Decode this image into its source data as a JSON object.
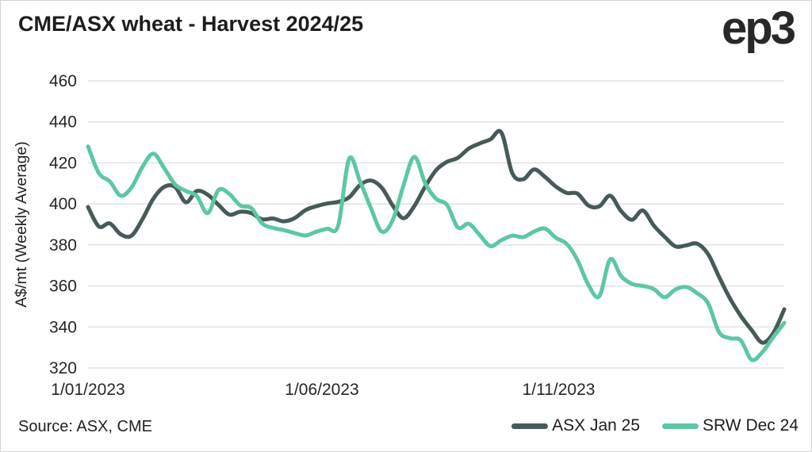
{
  "page": {
    "title": "CME/ASX wheat - Harvest 2024/25",
    "logo": "ep3",
    "source": "Source: ASX, CME"
  },
  "chart_data": {
    "type": "line",
    "title": "CME/ASX wheat - Harvest 2024/25",
    "xlabel": "",
    "ylabel": "A$/mt (Weekly Average)",
    "ylim": [
      320,
      460
    ],
    "yticks": [
      320,
      340,
      360,
      380,
      400,
      420,
      440,
      460
    ],
    "grid": "horizontal-only",
    "legend_position": "bottom-right",
    "x_unit": "weekly",
    "xticks": [
      {
        "label": "1/01/2023",
        "frac": 0.0
      },
      {
        "label": "1/06/2023",
        "frac": 0.336
      },
      {
        "label": "1/11/2023",
        "frac": 0.676
      }
    ],
    "series": [
      {
        "name": "ASX Jan 25",
        "color": "#465a59",
        "values": [
          398.5,
          389,
          390.5,
          385.2,
          384.5,
          392.5,
          402.5,
          408.3,
          408.3,
          400.8,
          406.3,
          404.5,
          399.5,
          394.8,
          396.2,
          395.5,
          392.5,
          392.9,
          391.5,
          393.1,
          397,
          398.9,
          400.2,
          401,
          403.2,
          409.2,
          411.4,
          407.9,
          399.3,
          393,
          399,
          408.5,
          416.5,
          420.5,
          422.5,
          427,
          429.5,
          431.5,
          434.8,
          415,
          412,
          416.8,
          413.2,
          408.5,
          405.4,
          405,
          399.2,
          398.8,
          404,
          396.5,
          392.3,
          396.8,
          389.5,
          384,
          379.3,
          379.8,
          380.6,
          375.5,
          364.5,
          354,
          345.4,
          338.5,
          332.3,
          337.1,
          348.6
        ]
      },
      {
        "name": "SRW Dec 24",
        "color": "#5cc8a0",
        "values": [
          428,
          415,
          411,
          404,
          408,
          418,
          424.5,
          417.5,
          409.5,
          406.3,
          403.8,
          395.5,
          406.8,
          404.8,
          399.2,
          398,
          390.5,
          388.3,
          387.2,
          385.8,
          384.6,
          386.5,
          387.9,
          389.5,
          422,
          411,
          398,
          386.5,
          392,
          409,
          423,
          410,
          402.5,
          399.5,
          388.5,
          390.3,
          384.8,
          379.4,
          382.3,
          384.5,
          383.8,
          386.5,
          388,
          383.5,
          380.5,
          372.5,
          360.5,
          355,
          373,
          364.8,
          361,
          360,
          358.5,
          354.5,
          358.3,
          359.5,
          356.4,
          351.5,
          337.5,
          334.5,
          333.5,
          324,
          327.8,
          335.1,
          342
        ]
      }
    ]
  },
  "style": {
    "gridline_color": "#e3e3e3",
    "axis_text_color": "#26262a",
    "line_width": 5
  }
}
